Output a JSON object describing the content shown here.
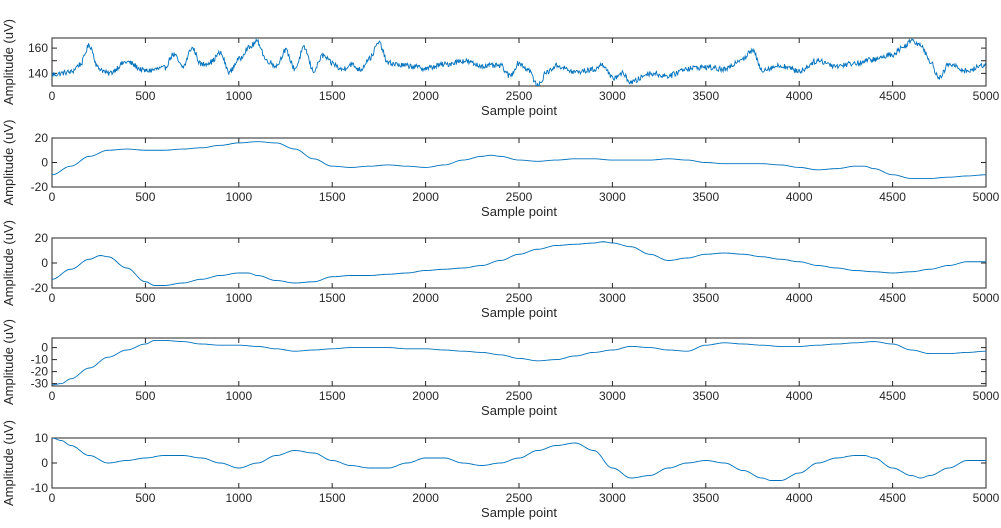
{
  "chart_data": [
    {
      "type": "line",
      "xlabel": "Sample point",
      "ylabel": "Amplitude (uV)",
      "xlim": [
        0,
        5000
      ],
      "ylim": [
        130,
        168
      ],
      "xticks": [
        0,
        500,
        1000,
        1500,
        2000,
        2500,
        3000,
        3500,
        4000,
        4500,
        5000
      ],
      "yticks": [
        140,
        150,
        160
      ],
      "ytick_labels": [
        "140",
        "",
        "160"
      ],
      "grid": false,
      "series": [
        {
          "color": "#0072BD",
          "noise": 2.2,
          "x": [
            0,
            100,
            150,
            200,
            250,
            300,
            400,
            500,
            600,
            650,
            700,
            750,
            800,
            850,
            900,
            950,
            1000,
            1050,
            1100,
            1150,
            1200,
            1250,
            1300,
            1350,
            1400,
            1450,
            1500,
            1550,
            1600,
            1650,
            1700,
            1750,
            1800,
            1900,
            2000,
            2100,
            2200,
            2300,
            2400,
            2450,
            2500,
            2550,
            2600,
            2650,
            2700,
            2800,
            2900,
            2950,
            3000,
            3050,
            3100,
            3200,
            3300,
            3400,
            3500,
            3600,
            3700,
            3750,
            3800,
            3900,
            4000,
            4100,
            4200,
            4300,
            4400,
            4500,
            4550,
            4600,
            4650,
            4700,
            4750,
            4800,
            4900,
            5000
          ],
          "values": [
            139,
            141,
            147,
            162,
            144,
            140,
            149,
            142,
            144,
            155,
            145,
            160,
            147,
            149,
            156,
            141,
            151,
            160,
            165,
            150,
            146,
            158,
            144,
            160,
            142,
            154,
            148,
            143,
            147,
            143,
            152,
            164,
            148,
            146,
            144,
            147,
            150,
            146,
            146,
            138,
            148,
            143,
            130,
            141,
            146,
            141,
            143,
            147,
            136,
            140,
            133,
            140,
            138,
            144,
            145,
            143,
            152,
            158,
            143,
            146,
            142,
            150,
            146,
            148,
            151,
            155,
            160,
            166,
            163,
            150,
            136,
            147,
            142,
            147
          ]
        }
      ]
    },
    {
      "type": "line",
      "xlabel": "Sample point",
      "ylabel": "Amplitude (uV)",
      "xlim": [
        0,
        5000
      ],
      "ylim": [
        -20,
        20
      ],
      "xticks": [
        0,
        500,
        1000,
        1500,
        2000,
        2500,
        3000,
        3500,
        4000,
        4500,
        5000
      ],
      "yticks": [
        -20,
        0,
        20
      ],
      "grid": false,
      "series": [
        {
          "color": "#0072BD",
          "x": [
            0,
            100,
            200,
            300,
            400,
            500,
            600,
            700,
            800,
            900,
            1000,
            1100,
            1200,
            1300,
            1400,
            1500,
            1600,
            1700,
            1800,
            1900,
            2000,
            2100,
            2200,
            2300,
            2350,
            2400,
            2500,
            2600,
            2700,
            2800,
            2900,
            3000,
            3100,
            3200,
            3300,
            3400,
            3500,
            3600,
            3700,
            3800,
            3900,
            4000,
            4100,
            4200,
            4300,
            4350,
            4400,
            4500,
            4600,
            4700,
            4800,
            4900,
            5000
          ],
          "values": [
            -10,
            -3,
            5,
            10,
            11,
            10,
            10,
            11,
            12,
            14,
            16,
            17,
            16,
            11,
            3,
            -3,
            -4,
            -3,
            -2,
            -3,
            -4,
            -2,
            2,
            5,
            6,
            5,
            2,
            1,
            2,
            3,
            3,
            2,
            2,
            2,
            3,
            2,
            0,
            -1,
            -1,
            -1,
            -2,
            -4,
            -6,
            -5,
            -3,
            -3,
            -5,
            -10,
            -13,
            -13,
            -12,
            -11,
            -10
          ]
        }
      ]
    },
    {
      "type": "line",
      "xlabel": "Sample point",
      "ylabel": "Amplitude (uV)",
      "xlim": [
        0,
        5000
      ],
      "ylim": [
        -20,
        20
      ],
      "xticks": [
        0,
        500,
        1000,
        1500,
        2000,
        2500,
        3000,
        3500,
        4000,
        4500,
        5000
      ],
      "yticks": [
        -20,
        0,
        20
      ],
      "grid": false,
      "series": [
        {
          "color": "#0072BD",
          "x": [
            0,
            100,
            200,
            260,
            300,
            400,
            500,
            550,
            600,
            700,
            800,
            900,
            1000,
            1050,
            1100,
            1200,
            1300,
            1400,
            1500,
            1600,
            1700,
            1800,
            1900,
            2000,
            2100,
            2200,
            2300,
            2400,
            2500,
            2600,
            2700,
            2800,
            2900,
            2950,
            3000,
            3100,
            3200,
            3300,
            3400,
            3500,
            3600,
            3700,
            3800,
            3900,
            4000,
            4100,
            4200,
            4300,
            4400,
            4500,
            4600,
            4700,
            4800,
            4900,
            5000
          ],
          "values": [
            -13,
            -5,
            3,
            6,
            5,
            -4,
            -15,
            -18,
            -18,
            -16,
            -13,
            -10,
            -8,
            -8,
            -10,
            -14,
            -16,
            -15,
            -11,
            -10,
            -10,
            -9,
            -8,
            -6,
            -5,
            -4,
            -2,
            2,
            7,
            11,
            14,
            15,
            16,
            17,
            16,
            13,
            7,
            2,
            4,
            7,
            8,
            7,
            5,
            3,
            1,
            -2,
            -4,
            -6,
            -7,
            -8,
            -7,
            -5,
            -2,
            1,
            1
          ]
        }
      ]
    },
    {
      "type": "line",
      "xlabel": "Sample point",
      "ylabel": "Amplitude (uV)",
      "xlim": [
        0,
        5000
      ],
      "ylim": [
        -32,
        8
      ],
      "xticks": [
        0,
        500,
        1000,
        1500,
        2000,
        2500,
        3000,
        3500,
        4000,
        4500,
        5000
      ],
      "yticks": [
        -30,
        -20,
        -10,
        0
      ],
      "grid": false,
      "series": [
        {
          "color": "#0072BD",
          "x": [
            0,
            50,
            100,
            200,
            300,
            400,
            500,
            550,
            600,
            700,
            800,
            900,
            1000,
            1100,
            1200,
            1300,
            1400,
            1500,
            1600,
            1700,
            1800,
            1900,
            2000,
            2100,
            2200,
            2300,
            2400,
            2500,
            2600,
            2700,
            2800,
            2900,
            3000,
            3100,
            3200,
            3300,
            3400,
            3500,
            3600,
            3700,
            3800,
            3900,
            4000,
            4100,
            4200,
            4300,
            4400,
            4500,
            4600,
            4700,
            4800,
            4900,
            5000
          ],
          "values": [
            -31,
            -30,
            -26,
            -17,
            -8,
            -2,
            3,
            6,
            6,
            5,
            3,
            2,
            2,
            1,
            -1,
            -3,
            -2,
            -1,
            0,
            0,
            0,
            -1,
            -1,
            -2,
            -3,
            -4,
            -6,
            -9,
            -11,
            -10,
            -7,
            -4,
            -2,
            1,
            0,
            -2,
            -3,
            2,
            4,
            3,
            2,
            1,
            1,
            2,
            3,
            4,
            5,
            3,
            -2,
            -5,
            -5,
            -4,
            -3
          ]
        }
      ]
    },
    {
      "type": "line",
      "xlabel": "Sample point",
      "ylabel": "Amplitude (uV)",
      "xlim": [
        0,
        5000
      ],
      "ylim": [
        -10,
        10
      ],
      "xticks": [
        0,
        500,
        1000,
        1500,
        2000,
        2500,
        3000,
        3500,
        4000,
        4500,
        5000
      ],
      "yticks": [
        -10,
        0,
        10
      ],
      "grid": false,
      "series": [
        {
          "color": "#0072BD",
          "x": [
            0,
            50,
            100,
            200,
            300,
            400,
            500,
            600,
            700,
            800,
            900,
            1000,
            1100,
            1200,
            1300,
            1400,
            1500,
            1600,
            1700,
            1800,
            1900,
            2000,
            2100,
            2200,
            2300,
            2400,
            2500,
            2600,
            2700,
            2800,
            2900,
            3000,
            3100,
            3200,
            3300,
            3400,
            3500,
            3600,
            3700,
            3800,
            3850,
            3900,
            4000,
            4100,
            4200,
            4300,
            4350,
            4400,
            4500,
            4600,
            4650,
            4700,
            4800,
            4900,
            5000
          ],
          "values": [
            10,
            9,
            7,
            3,
            0,
            1,
            2,
            3,
            3,
            2,
            0,
            -2,
            0,
            3,
            5,
            4,
            1,
            -1,
            -2,
            -2,
            0,
            2,
            2,
            0,
            -1,
            0,
            2,
            5,
            7,
            8,
            5,
            -2,
            -6,
            -5,
            -2,
            0,
            1,
            0,
            -3,
            -6,
            -7,
            -7,
            -4,
            0,
            2,
            3,
            3,
            2,
            -2,
            -5,
            -6,
            -5,
            -2,
            1,
            1
          ]
        }
      ]
    }
  ]
}
